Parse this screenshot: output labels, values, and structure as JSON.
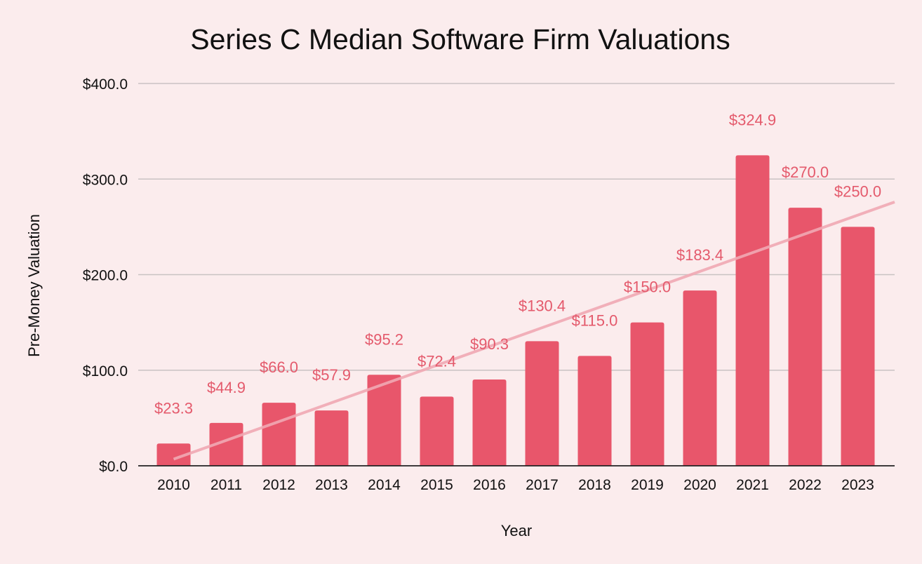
{
  "chart_data": {
    "type": "bar",
    "title": "Series C Median Software Firm Valuations",
    "xlabel": "Year",
    "ylabel": "Pre-Money Valuation",
    "categories": [
      "2010",
      "2011",
      "2012",
      "2013",
      "2014",
      "2015",
      "2016",
      "2017",
      "2018",
      "2019",
      "2020",
      "2021",
      "2022",
      "2023"
    ],
    "values": [
      23.3,
      44.9,
      66.0,
      57.9,
      95.2,
      72.4,
      90.3,
      130.4,
      115.0,
      150.0,
      183.4,
      324.9,
      270.0,
      250.0
    ],
    "data_labels": [
      "$23.3",
      "$44.9",
      "$66.0",
      "$57.9",
      "$95.2",
      "$72.4",
      "$90.3",
      "$130.4",
      "$115.0",
      "$150.0",
      "$183.4",
      "$324.9",
      "$270.0",
      "$250.0"
    ],
    "yticks": [
      0,
      100,
      200,
      300,
      400
    ],
    "ytick_labels": [
      "$0.0",
      "$100.0",
      "$200.0",
      "$300.0",
      "$400.0"
    ],
    "ylim": [
      0,
      400
    ],
    "grid": true,
    "trendline": {
      "type": "linear",
      "start_value": 7,
      "end_value": 276
    },
    "colors": {
      "bar": "#e8566b",
      "trendline": "#f1a9b4",
      "data_label": "#e45a6c",
      "grid": "#c9c2c3",
      "background": "#fbeced"
    }
  }
}
